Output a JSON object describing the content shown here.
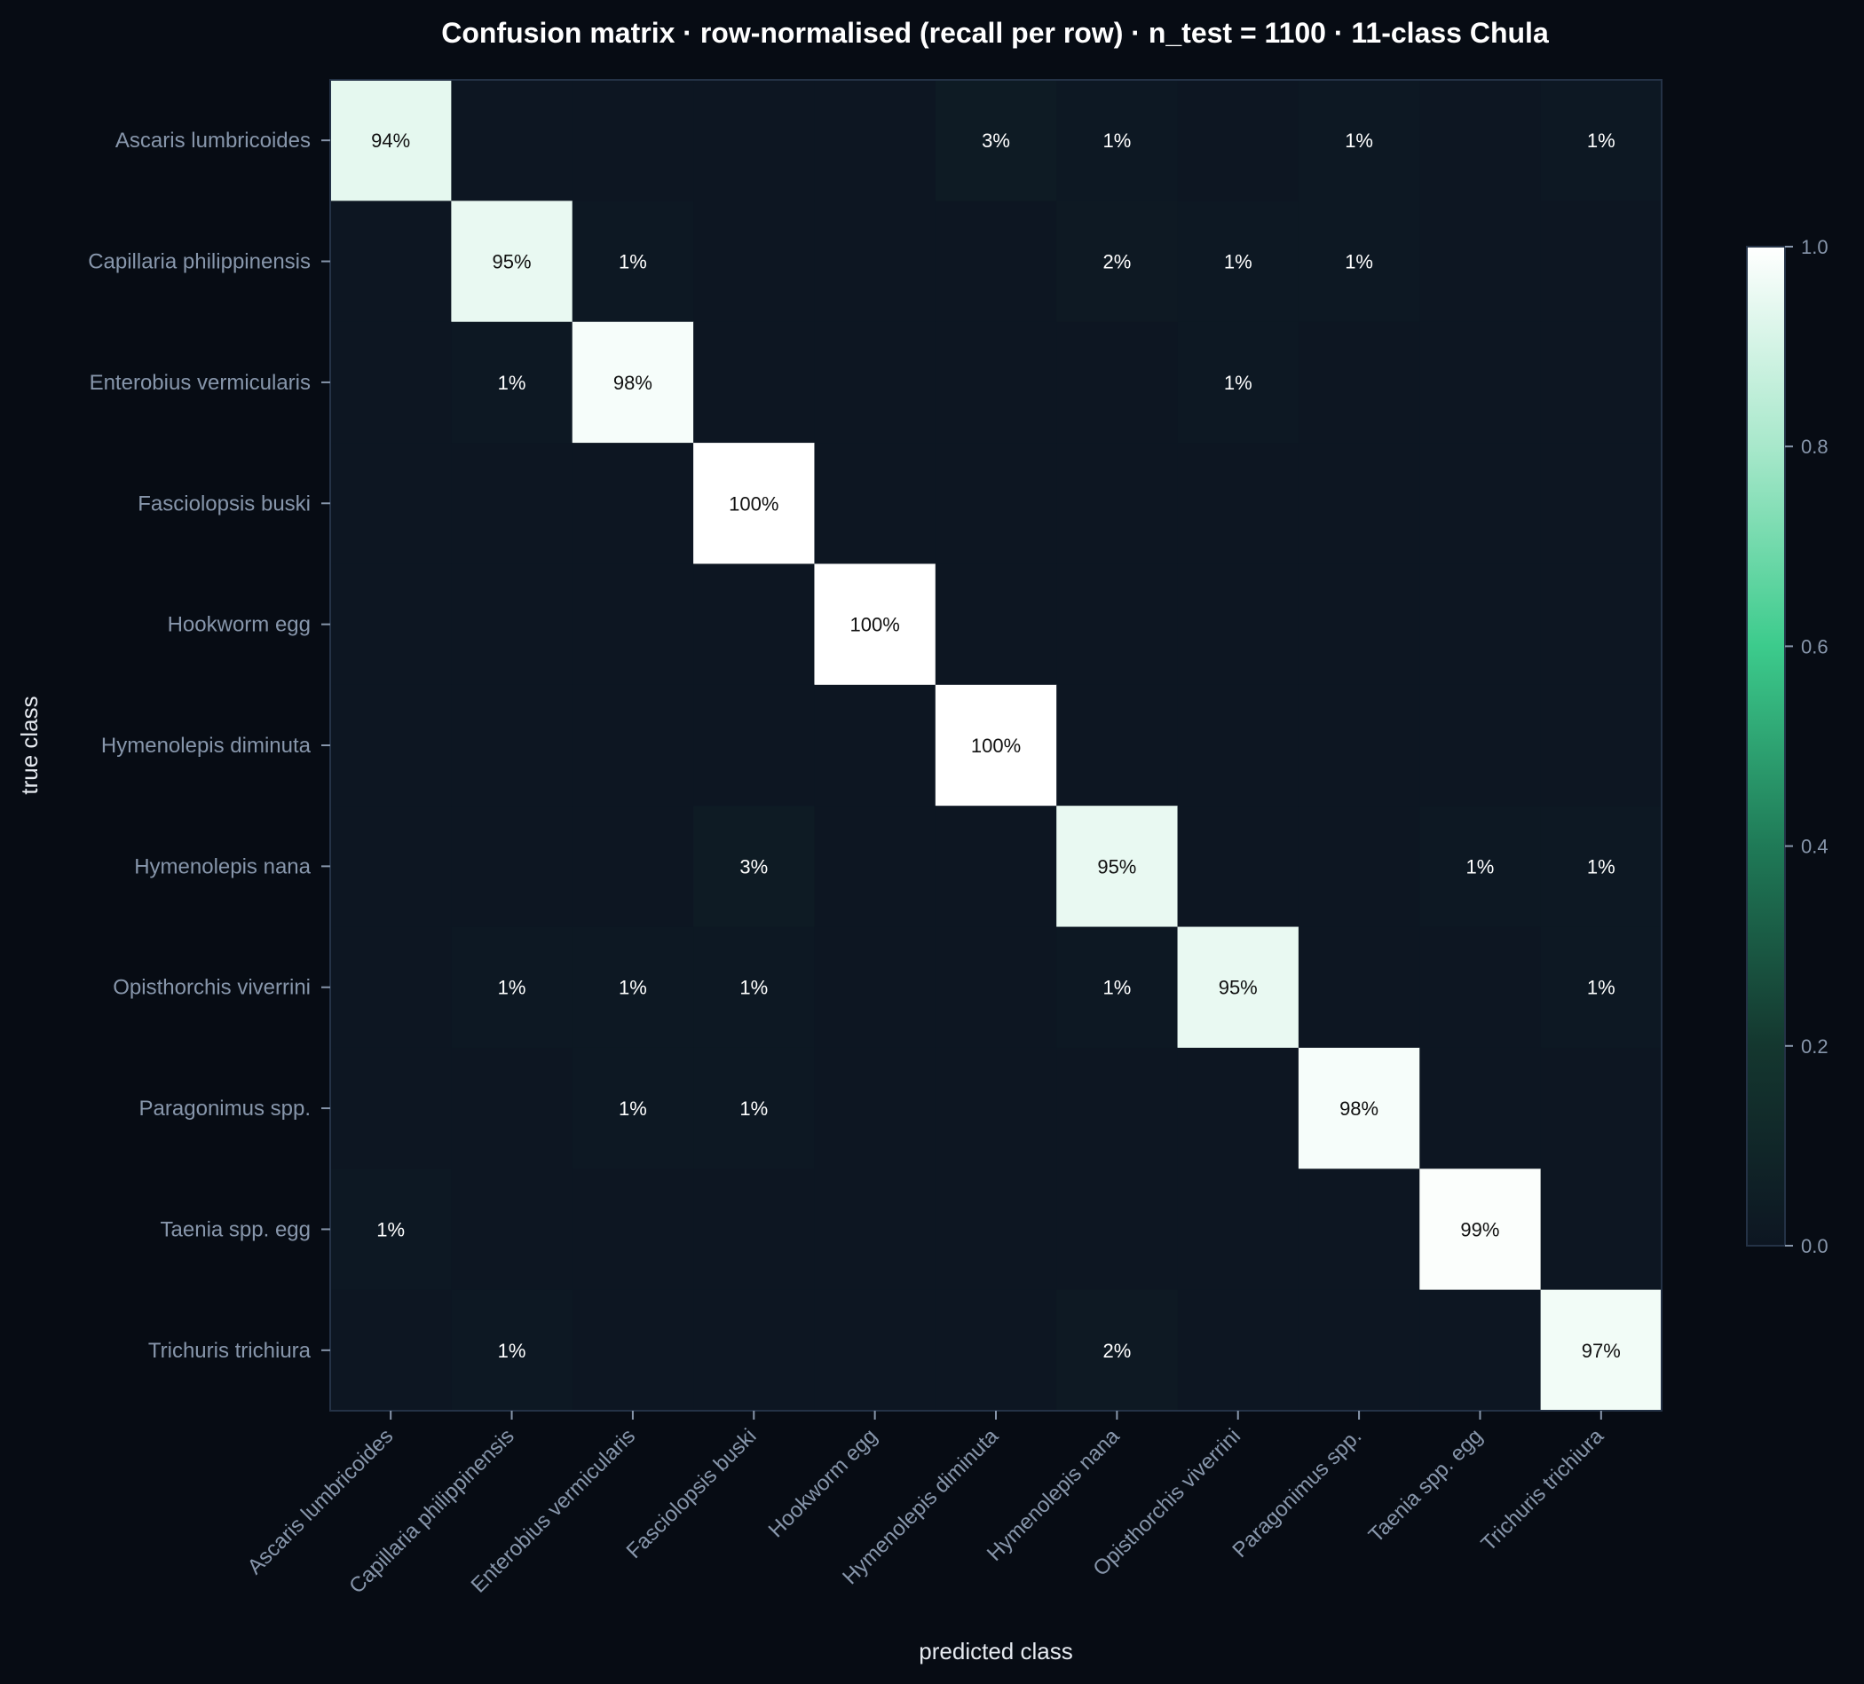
{
  "chart_data": {
    "type": "heatmap",
    "title": "Confusion matrix · row-normalised (recall per row) · n_test = 1100 · 11-class Chula",
    "xlabel": "predicted class",
    "ylabel": "true class",
    "categories": [
      "Ascaris lumbricoides",
      "Capillaria philippinensis",
      "Enterobius vermicularis",
      "Fasciolopsis buski",
      "Hookworm egg",
      "Hymenolepis diminuta",
      "Hymenolepis nana",
      "Opisthorchis viverrini",
      "Paragonimus spp.",
      "Taenia spp. egg",
      "Trichuris trichiura"
    ],
    "matrix": [
      [
        0.94,
        0,
        0,
        0,
        0,
        0.03,
        0.01,
        0,
        0.01,
        0,
        0.01
      ],
      [
        0,
        0.95,
        0.01,
        0,
        0,
        0,
        0.02,
        0.01,
        0.01,
        0,
        0
      ],
      [
        0,
        0.01,
        0.98,
        0,
        0,
        0,
        0,
        0.01,
        0,
        0,
        0
      ],
      [
        0,
        0,
        0,
        1.0,
        0,
        0,
        0,
        0,
        0,
        0,
        0
      ],
      [
        0,
        0,
        0,
        0,
        1.0,
        0,
        0,
        0,
        0,
        0,
        0
      ],
      [
        0,
        0,
        0,
        0,
        0,
        1.0,
        0,
        0,
        0,
        0,
        0
      ],
      [
        0,
        0,
        0,
        0.03,
        0,
        0,
        0.95,
        0,
        0,
        0.01,
        0.01
      ],
      [
        0,
        0.01,
        0.01,
        0.01,
        0,
        0,
        0.01,
        0.95,
        0,
        0,
        0.01
      ],
      [
        0,
        0,
        0.01,
        0.01,
        0,
        0,
        0,
        0,
        0.98,
        0,
        0
      ],
      [
        0.01,
        0,
        0,
        0,
        0,
        0,
        0,
        0,
        0,
        0.99,
        0
      ],
      [
        0,
        0.01,
        0,
        0,
        0,
        0,
        0.02,
        0,
        0,
        0,
        0.97
      ]
    ],
    "colorbar": {
      "range": [
        0,
        1
      ],
      "ticks": [
        "0.0",
        "0.2",
        "0.4",
        "0.6",
        "0.8",
        "1.0"
      ]
    },
    "grid": false
  },
  "colors": {
    "background": "#070c14",
    "cell_low": "#0d1622",
    "cell_mid": "#3ccb8c",
    "cell_high": "#ffffff",
    "title_text": "#ffffff",
    "tick_text": "#8796ab",
    "axis_label_text": "#e6eaf0",
    "cell_text": "#ffffff",
    "cell_text_on_light": "#111111",
    "frame": "#243246"
  }
}
